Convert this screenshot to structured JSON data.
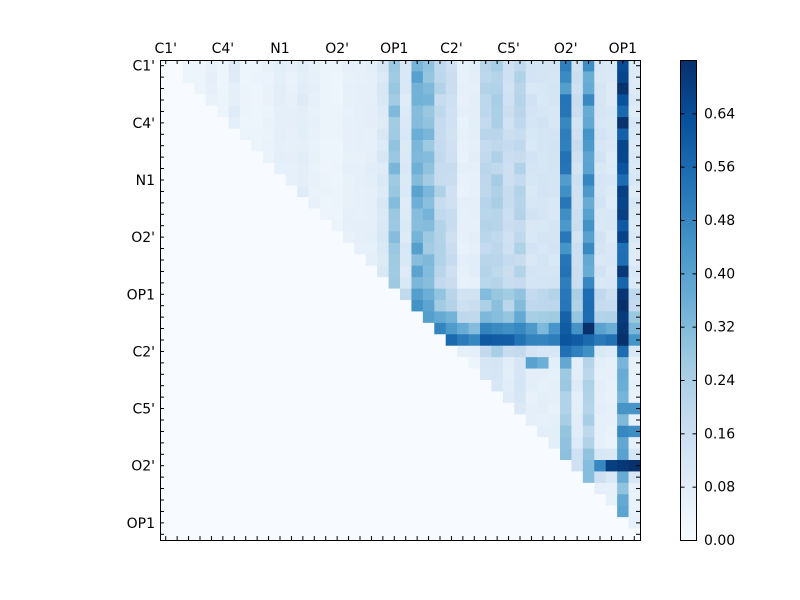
{
  "chart_data": {
    "type": "heatmap",
    "title": "",
    "colormap": "Blues",
    "grid": false,
    "colorbar_position": "right",
    "colorbar": {
      "min": 0.0,
      "max": 0.72,
      "ticks": [
        "0.00",
        "0.08",
        "0.16",
        "0.24",
        "0.32",
        "0.40",
        "0.48",
        "0.56",
        "0.64"
      ],
      "colors": [
        "#f7fbff",
        "#deebf7",
        "#c6dbef",
        "#9ecae1",
        "#6baed6",
        "#4292c6",
        "#2171b5",
        "#08519c",
        "#08306b"
      ]
    },
    "x_tick_labels": [
      "C1'",
      "C4'",
      "N1",
      "O2'",
      "OP1",
      "C2'",
      "C5'",
      "O2'",
      "OP1"
    ],
    "y_tick_labels": [
      "C1'",
      "C4'",
      "N1",
      "O2'",
      "OP1",
      "C2'",
      "C5'",
      "O2'",
      "OP1"
    ],
    "matrix_size": 42,
    "features": {
      "col_strength": [
        0,
        0,
        0.04,
        0.04,
        0.06,
        0.04,
        0.08,
        0.04,
        0.04,
        0.05,
        0.07,
        0.06,
        0.08,
        0.06,
        0.04,
        0.04,
        0.06,
        0.06,
        0.07,
        0.1,
        0.07,
        0.1,
        0.18,
        0.12,
        0.2,
        0.16,
        0.06,
        0.07,
        0.11,
        0.22,
        0.16,
        0.14,
        0.12,
        0.12,
        0.12,
        0.3,
        0.15,
        0.1,
        0.12,
        0.1,
        0.1,
        0.1
      ],
      "strong_cols": {
        "20": 0.3,
        "22": 0.36,
        "23": 0.3,
        "28": 0.2,
        "29": 0.22,
        "31": 0.2,
        "35": 0.48,
        "37": 0.42,
        "40": 0.62
      },
      "row_boost": {
        "20": 0.08,
        "21": 0.08,
        "22": 0.14,
        "23": 0.26,
        "24": 0.4,
        "34": 0.12,
        "35": 0.14,
        "36": 0.12
      },
      "notable_cells": [
        {
          "row": 23,
          "col": 40,
          "value": 0.7
        },
        {
          "row": 23,
          "col": 35,
          "value": 0.6
        },
        {
          "row": 24,
          "col": 35,
          "value": 0.62
        },
        {
          "row": 24,
          "col": 37,
          "value": 0.56
        },
        {
          "row": 25,
          "col": 36,
          "value": 0.5
        },
        {
          "row": 26,
          "col": 32,
          "value": 0.4
        },
        {
          "row": 26,
          "col": 33,
          "value": 0.36
        },
        {
          "row": 26,
          "col": 35,
          "value": 0.38
        },
        {
          "row": 30,
          "col": 40,
          "value": 0.44
        },
        {
          "row": 30,
          "col": 41,
          "value": 0.44
        },
        {
          "row": 32,
          "col": 40,
          "value": 0.48
        },
        {
          "row": 32,
          "col": 41,
          "value": 0.46
        },
        {
          "row": 34,
          "col": 40,
          "value": 0.4
        },
        {
          "row": 35,
          "col": 38,
          "value": 0.48
        },
        {
          "row": 35,
          "col": 39,
          "value": 0.68
        },
        {
          "row": 35,
          "col": 40,
          "value": 0.7
        },
        {
          "row": 35,
          "col": 41,
          "value": 0.72
        }
      ]
    }
  }
}
